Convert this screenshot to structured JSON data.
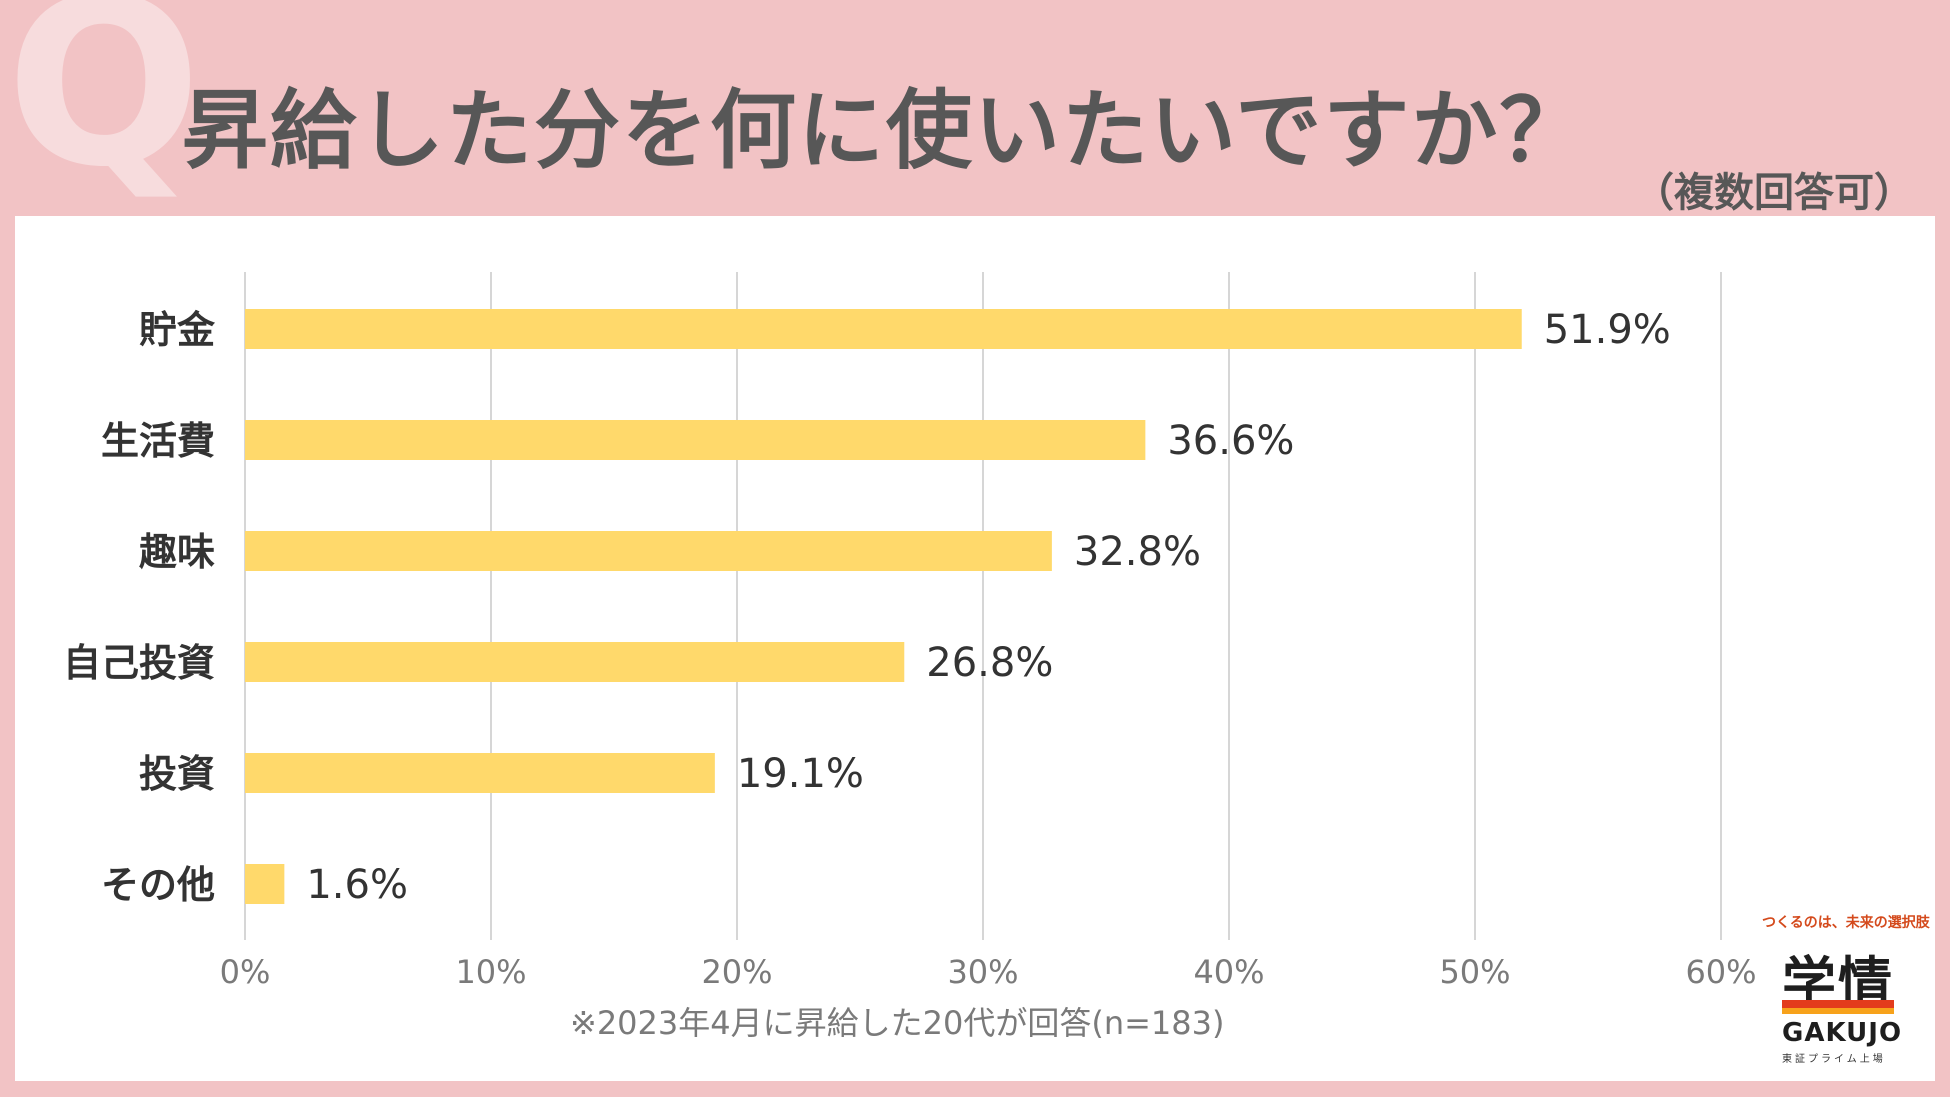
{
  "header": {
    "q_mark": "Q",
    "title": "昇給した分を何に使いたいですか？",
    "subtitle": "（複数回答可）"
  },
  "chart_data": {
    "type": "bar",
    "orientation": "horizontal",
    "categories": [
      "貯金",
      "生活費",
      "趣味",
      "自己投資",
      "投資",
      "その他"
    ],
    "values": [
      51.9,
      36.6,
      32.8,
      26.8,
      19.1,
      1.6
    ],
    "value_labels": [
      "51.9%",
      "36.6%",
      "32.8%",
      "26.8%",
      "19.1%",
      "1.6%"
    ],
    "xlim": [
      0,
      60
    ],
    "xticks": [
      0,
      10,
      20,
      30,
      40,
      50,
      60
    ],
    "xtick_labels": [
      "0%",
      "10%",
      "20%",
      "30%",
      "40%",
      "50%",
      "60%"
    ],
    "grid": true,
    "bar_color": "#ffd96b",
    "grid_color": "#d6d6d6"
  },
  "note": "※2023年4月に昇給した20代が回答(n=183)",
  "logo": {
    "tagline": "つくるのは、未来の選択肢",
    "name_jp": "学情",
    "name_en": "GAKUJO",
    "listing": "東証プライム上場"
  }
}
